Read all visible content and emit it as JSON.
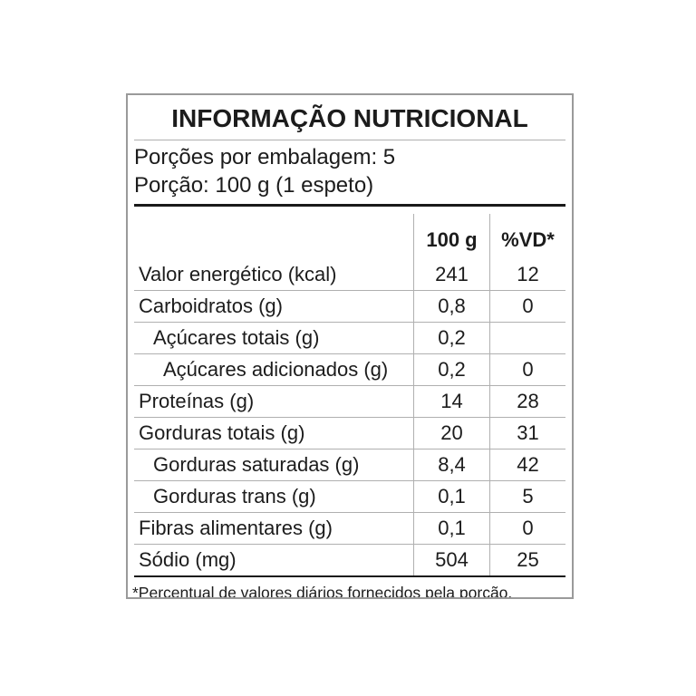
{
  "label": {
    "title": "INFORMAÇÃO NUTRICIONAL",
    "servings_per_package": "Porções por embalagem: 5",
    "serving_size": "Porção: 100 g (1 espeto)",
    "columns": {
      "amount": "100 g",
      "daily_value": "%VD*"
    },
    "rows": [
      {
        "name": "Valor energético (kcal)",
        "amount": "241",
        "daily_value": "12",
        "indent": 0
      },
      {
        "name": "Carboidratos (g)",
        "amount": "0,8",
        "daily_value": "0",
        "indent": 0
      },
      {
        "name": "Açúcares totais (g)",
        "amount": "0,2",
        "daily_value": "",
        "indent": 1
      },
      {
        "name": "Açúcares adicionados (g)",
        "amount": "0,2",
        "daily_value": "0",
        "indent": 2
      },
      {
        "name": "Proteínas (g)",
        "amount": "14",
        "daily_value": "28",
        "indent": 0
      },
      {
        "name": "Gorduras totais (g)",
        "amount": "20",
        "daily_value": "31",
        "indent": 0
      },
      {
        "name": "Gorduras saturadas (g)",
        "amount": "8,4",
        "daily_value": "42",
        "indent": 1
      },
      {
        "name": "Gorduras trans (g)",
        "amount": "0,1",
        "daily_value": "5",
        "indent": 1
      },
      {
        "name": "Fibras alimentares (g)",
        "amount": "0,1",
        "daily_value": "0",
        "indent": 0
      },
      {
        "name": "Sódio (mg)",
        "amount": "504",
        "daily_value": "25",
        "indent": 0
      }
    ],
    "footnote": "*Percentual de valores diários fornecidos pela porção.",
    "colors": {
      "text": "#1c1c1c",
      "separator": "#b0b0b0",
      "rule": "#1a1a1a",
      "border": "#9a9a9a",
      "background": "#ffffff"
    }
  }
}
